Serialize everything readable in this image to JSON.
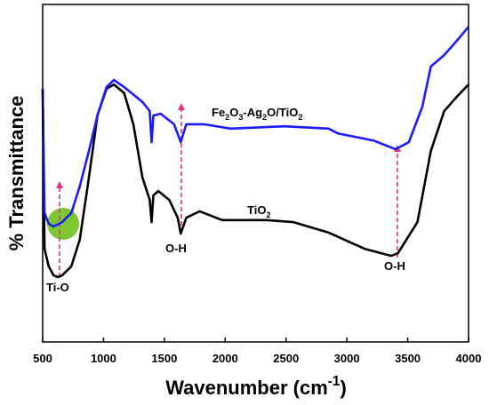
{
  "chart_data": {
    "type": "line",
    "xlabel": "Wavenumber (cm-1)",
    "ylabel": "% Transmittance",
    "xlim": [
      500,
      4000
    ],
    "ylim": [
      0,
      100
    ],
    "xticks": [
      500,
      1000,
      1500,
      2000,
      2500,
      3000,
      3500,
      4000
    ],
    "series": [
      {
        "name": "TiO2",
        "color": "#000000",
        "x": [
          500,
          515,
          550,
          590,
          625,
          660,
          735,
          805,
          880,
          950,
          1025,
          1085,
          1170,
          1245,
          1320,
          1380,
          1395,
          1410,
          1450,
          1540,
          1610,
          1635,
          1680,
          1790,
          1975,
          2340,
          2560,
          2850,
          3145,
          3365,
          3420,
          3580,
          3690,
          3800,
          3910,
          4000
        ],
        "values": [
          75,
          27.6,
          22.4,
          19.7,
          19.2,
          19.7,
          22.4,
          30.3,
          48.7,
          67.1,
          75,
          76.3,
          73.7,
          64.5,
          48.7,
          42.1,
          35.5,
          43.4,
          44.7,
          42.1,
          36.8,
          32.1,
          36.8,
          38.7,
          36.1,
          36.1,
          35.5,
          32.4,
          27.6,
          25.5,
          26.3,
          35.5,
          56.6,
          68.4,
          72.9,
          76.3
        ]
      },
      {
        "name": "Fe2O3-Ag2O/TiO2",
        "color": "#1a1aff",
        "x": [
          500,
          515,
          550,
          590,
          660,
          735,
          805,
          880,
          950,
          1025,
          1085,
          1170,
          1320,
          1380,
          1395,
          1410,
          1470,
          1580,
          1635,
          1680,
          1825,
          2045,
          2485,
          2850,
          2925,
          3215,
          3400,
          3510,
          3620,
          3690,
          3800,
          3910,
          4000
        ],
        "values": [
          75,
          38.2,
          35,
          34.2,
          35.5,
          38.2,
          46.1,
          56.6,
          67.1,
          75.5,
          77.6,
          75.5,
          71.1,
          68.4,
          59.2,
          67.1,
          67.6,
          64.5,
          59.2,
          64.5,
          64.5,
          63.2,
          63.9,
          63.2,
          61.8,
          59.7,
          57.1,
          59.2,
          69.7,
          81.6,
          85,
          89.5,
          93.4
        ]
      }
    ],
    "annotations": [
      "Ti-O",
      "O-H",
      "O-H"
    ]
  }
}
